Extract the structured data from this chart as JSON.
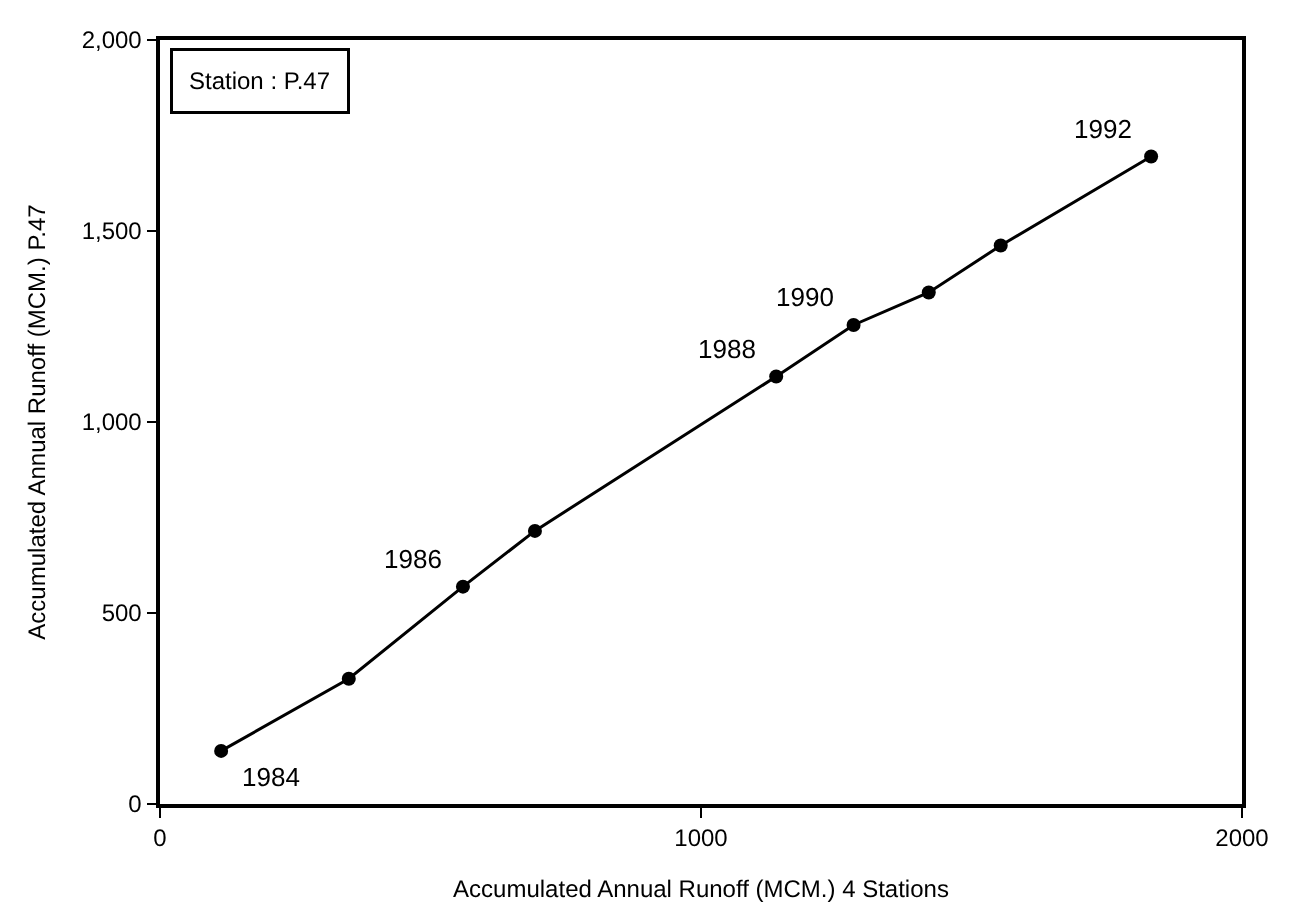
{
  "chart_data": {
    "type": "line",
    "xlabel": "Accumulated Annual Runoff (MCM.) 4 Stations",
    "ylabel": "Accumulated Annual Runoff (MCM.) P.47",
    "x": [
      113,
      349,
      560,
      693,
      1139,
      1282,
      1421,
      1554,
      1832
    ],
    "series": [
      {
        "color": "#000000",
        "values": [
          139,
          328,
          569,
          715,
          1119,
          1254,
          1339,
          1462,
          1695
        ]
      }
    ],
    "xlim": [
      0,
      2000
    ],
    "xticks": [
      0,
      1000,
      2000
    ],
    "ylim": [
      0,
      2000
    ],
    "yticks": [
      {
        "value": 0,
        "label": "0"
      },
      {
        "value": 500,
        "label": "500"
      },
      {
        "value": 1000,
        "label": "1,000"
      },
      {
        "value": 1500,
        "label": "1,500"
      },
      {
        "value": 2000,
        "label": "2,000"
      }
    ],
    "marker": "circle",
    "line_style": "solid",
    "legend": false,
    "annotations": [
      "Station : P.47",
      {
        "text": "1984",
        "x": 113,
        "y": 139
      },
      {
        "text": "1986",
        "x": 560,
        "y": 569
      },
      {
        "text": "1988",
        "x": 1139,
        "y": 1119
      },
      {
        "text": "1990",
        "x": 1282,
        "y": 1254
      },
      {
        "text": "1992",
        "x": 1832,
        "y": 1695
      }
    ]
  }
}
